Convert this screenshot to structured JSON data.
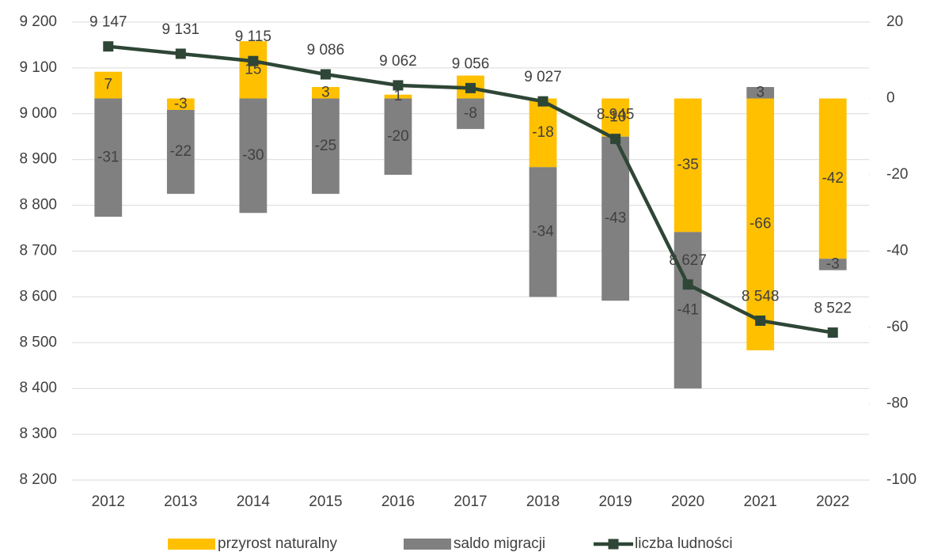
{
  "chart_data": {
    "type": "bar",
    "stacked": true,
    "categories": [
      "2012",
      "2013",
      "2014",
      "2015",
      "2016",
      "2017",
      "2018",
      "2019",
      "2020",
      "2021",
      "2022"
    ],
    "series": [
      {
        "name": "przyrost naturalny",
        "type": "bar",
        "axis": "y2",
        "color": "#ffc000",
        "values": [
          7,
          -3,
          15,
          3,
          1,
          6,
          -18,
          -10,
          -35,
          -66,
          -42
        ],
        "value_labels": [
          "7",
          "-3",
          "15",
          "3",
          "1",
          null,
          "-18",
          "-10",
          "-35",
          "-66",
          "-42"
        ]
      },
      {
        "name": "saldo migracji",
        "type": "bar",
        "axis": "y2",
        "color": "#808080",
        "values": [
          -31,
          -22,
          -30,
          -25,
          -20,
          -8,
          -34,
          -43,
          -41,
          3,
          -3
        ]
      },
      {
        "name": "liczba ludności",
        "type": "line",
        "axis": "y",
        "color": "#2e4636",
        "values": [
          9147,
          9131,
          9115,
          9086,
          9062,
          9056,
          9027,
          8945,
          8627,
          8548,
          8522
        ],
        "value_labels": [
          "9 147",
          "9 131",
          "9 115",
          "9 086",
          "9 062",
          "9 056",
          "9 027",
          "8 945",
          "8 627",
          "8 548",
          "8 522"
        ]
      }
    ],
    "ylim": [
      8200,
      9200
    ],
    "yticks": [
      {
        "value": 8200,
        "label": "8 200"
      },
      {
        "value": 8300,
        "label": "8 300"
      },
      {
        "value": 8400,
        "label": "8 400"
      },
      {
        "value": 8500,
        "label": "8 500"
      },
      {
        "value": 8600,
        "label": "8 600"
      },
      {
        "value": 8700,
        "label": "8 700"
      },
      {
        "value": 8800,
        "label": "8 800"
      },
      {
        "value": 8900,
        "label": "8 900"
      },
      {
        "value": 9000,
        "label": "9 000"
      },
      {
        "value": 9100,
        "label": "9 100"
      },
      {
        "value": 9200,
        "label": "9 200"
      }
    ],
    "y2lim": [
      -100,
      20
    ],
    "y2ticks": [
      -100,
      -80,
      -60,
      -40,
      -20,
      0,
      20
    ],
    "grid": true,
    "legend": "bottom"
  }
}
